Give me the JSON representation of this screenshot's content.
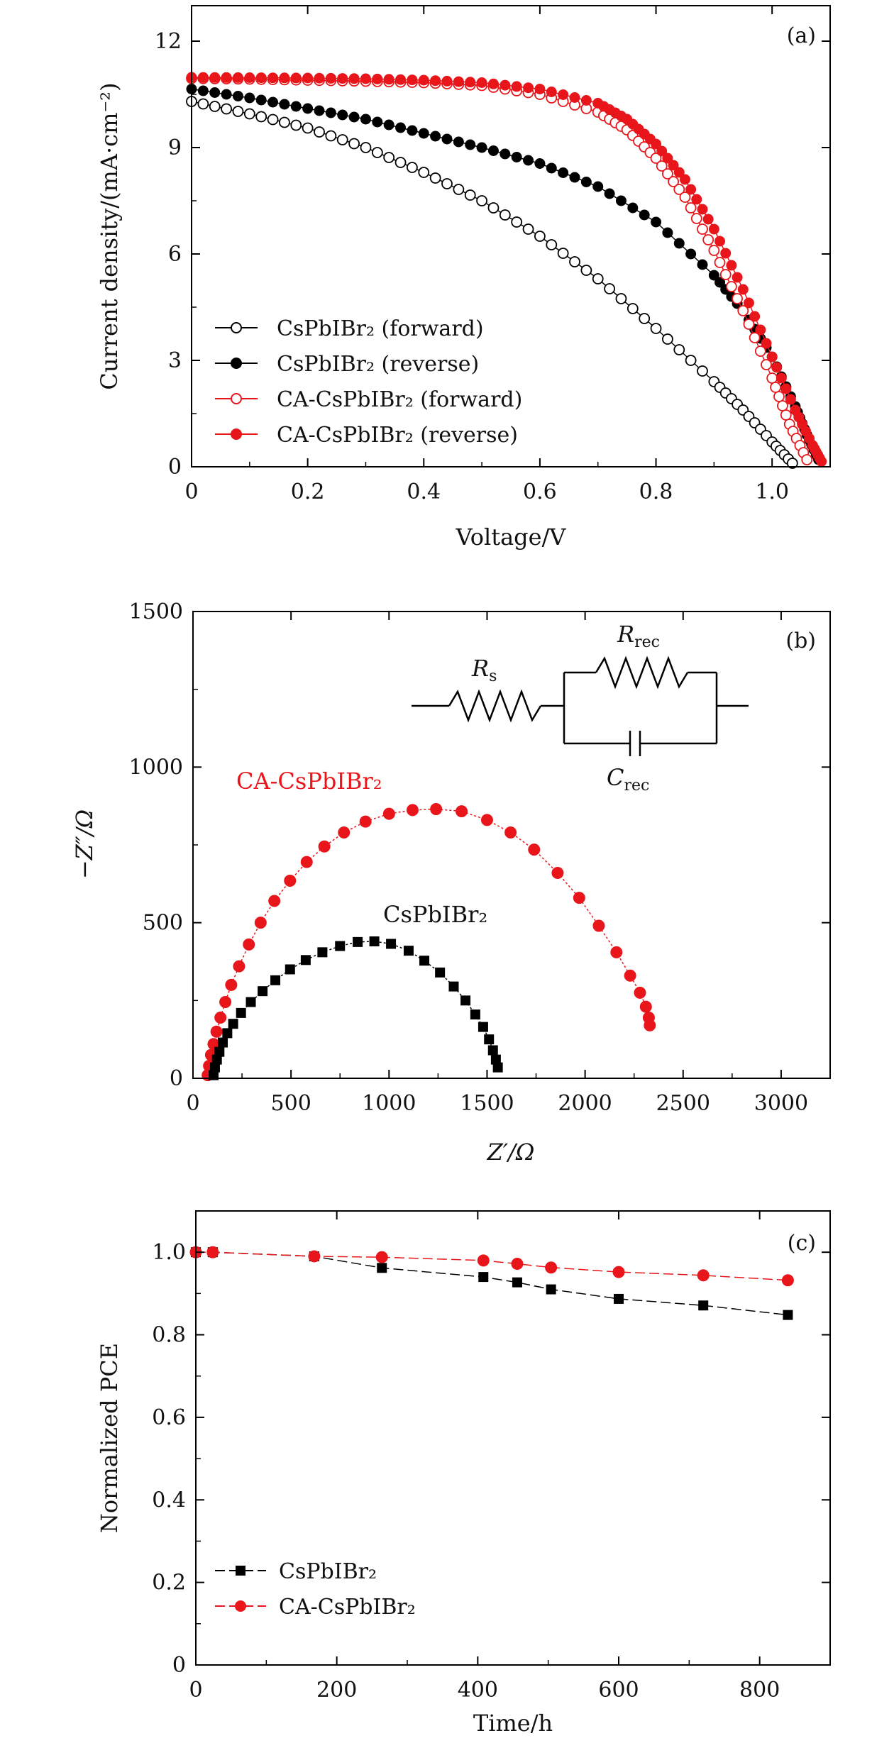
{
  "colors": {
    "black": "#000000",
    "red": "#e8161b",
    "line_red": "#d43a3a"
  },
  "chart_data": [
    {
      "type": "line",
      "panel_label": "(a)",
      "xlabel": "Voltage/V",
      "ylabel": "Current density/(mA·cm⁻²)",
      "xlim": [
        0,
        1.1
      ],
      "ylim": [
        0,
        13
      ],
      "xticks": [
        0,
        0.2,
        0.4,
        0.6,
        0.8,
        1.0
      ],
      "xtick_labels": [
        "0",
        "0.2",
        "0.4",
        "0.6",
        "0.8",
        "1.0"
      ],
      "yticks": [
        0,
        3,
        6,
        9,
        12
      ],
      "ytick_labels": [
        "0",
        "3",
        "6",
        "9",
        "12"
      ],
      "legend_position": "lower-left",
      "series": [
        {
          "name": "CsPbIBr₂ (forward)",
          "color": "#000000",
          "marker": "circle-open",
          "x": [
            0,
            0.1,
            0.2,
            0.3,
            0.4,
            0.5,
            0.6,
            0.7,
            0.8,
            0.9,
            0.95,
            1.0,
            1.035
          ],
          "y": [
            10.3,
            9.95,
            9.55,
            9.0,
            8.3,
            7.5,
            6.5,
            5.3,
            3.9,
            2.4,
            1.6,
            0.7,
            0.1
          ]
        },
        {
          "name": "CsPbIBr₂ (reverse)",
          "color": "#000000",
          "marker": "circle-filled",
          "x": [
            0,
            0.1,
            0.2,
            0.3,
            0.4,
            0.5,
            0.6,
            0.7,
            0.8,
            0.9,
            0.95,
            1.0,
            1.04,
            1.06,
            1.08
          ],
          "y": [
            10.65,
            10.4,
            10.1,
            9.8,
            9.4,
            9.0,
            8.55,
            7.9,
            6.9,
            5.4,
            4.4,
            3.1,
            1.7,
            0.9,
            0.2
          ]
        },
        {
          "name": "CA-CsPbIBr₂ (forward)",
          "color": "#e8161b",
          "marker": "circle-open",
          "x": [
            0,
            0.1,
            0.2,
            0.3,
            0.4,
            0.5,
            0.6,
            0.7,
            0.75,
            0.8,
            0.85,
            0.9,
            0.95,
            1.0,
            1.03,
            1.06
          ],
          "y": [
            10.95,
            10.93,
            10.9,
            10.87,
            10.83,
            10.75,
            10.5,
            10.0,
            9.5,
            8.7,
            7.6,
            6.1,
            4.4,
            2.5,
            1.2,
            0.2
          ]
        },
        {
          "name": "CA-CsPbIBr₂ (reverse)",
          "color": "#e8161b",
          "marker": "circle-filled",
          "x": [
            0,
            0.1,
            0.2,
            0.3,
            0.4,
            0.5,
            0.6,
            0.7,
            0.75,
            0.8,
            0.85,
            0.9,
            0.95,
            1.0,
            1.04,
            1.07,
            1.085
          ],
          "y": [
            10.98,
            10.97,
            10.96,
            10.94,
            10.9,
            10.83,
            10.65,
            10.25,
            9.8,
            9.1,
            8.1,
            6.7,
            5.0,
            3.1,
            1.6,
            0.6,
            0.15
          ]
        }
      ]
    },
    {
      "type": "scatter",
      "panel_label": "(b)",
      "xlabel": "Z′/Ω",
      "ylabel": "−Z″/Ω",
      "xlim": [
        0,
        3250
      ],
      "ylim": [
        0,
        1500
      ],
      "xticks": [
        0,
        500,
        1000,
        1500,
        2000,
        2500,
        3000
      ],
      "xtick_labels": [
        "0",
        "500",
        "1000",
        "1500",
        "2000",
        "2500",
        "3000"
      ],
      "yticks": [
        0,
        500,
        1000,
        1500
      ],
      "ytick_labels": [
        "0",
        "500",
        "1000",
        "1500"
      ],
      "circuit_labels": {
        "rs": "R",
        "rs_sub": "s",
        "rrec": "R",
        "rrec_sub": "rec",
        "crec": "C",
        "crec_sub": "rec"
      },
      "series": [
        {
          "name": "CA-CsPbIBr₂",
          "color": "#e8161b",
          "marker": "circle-filled",
          "x": [
            75,
            82,
            92,
            105,
            120,
            140,
            165,
            195,
            235,
            285,
            345,
            415,
            495,
            580,
            670,
            770,
            880,
            1000,
            1120,
            1240,
            1370,
            1500,
            1620,
            1740,
            1860,
            1970,
            2070,
            2160,
            2230,
            2280,
            2310,
            2325,
            2330
          ],
          "y": [
            10,
            40,
            75,
            110,
            150,
            195,
            245,
            300,
            360,
            430,
            500,
            570,
            635,
            695,
            745,
            790,
            825,
            850,
            862,
            865,
            858,
            830,
            790,
            735,
            660,
            580,
            490,
            405,
            330,
            275,
            230,
            195,
            170
          ]
        },
        {
          "name": "CsPbIBr₂",
          "color": "#000000",
          "marker": "square-filled",
          "x": [
            105,
            112,
            122,
            135,
            152,
            175,
            205,
            245,
            295,
            355,
            420,
            495,
            575,
            660,
            750,
            840,
            925,
            1010,
            1100,
            1180,
            1260,
            1330,
            1390,
            1440,
            1480,
            1510,
            1530,
            1545,
            1555
          ],
          "y": [
            10,
            35,
            60,
            85,
            115,
            145,
            175,
            210,
            245,
            280,
            315,
            350,
            380,
            405,
            425,
            438,
            440,
            432,
            410,
            378,
            340,
            295,
            250,
            205,
            165,
            125,
            90,
            60,
            35
          ]
        }
      ]
    },
    {
      "type": "line",
      "panel_label": "(c)",
      "xlabel": "Time/h",
      "ylabel": "Normalized PCE",
      "xlim": [
        0,
        900
      ],
      "ylim": [
        0,
        1.1
      ],
      "xticks": [
        0,
        200,
        400,
        600,
        800
      ],
      "xtick_labels": [
        "0",
        "200",
        "400",
        "600",
        "800"
      ],
      "yticks": [
        0,
        0.2,
        0.4,
        0.6,
        0.8,
        1.0
      ],
      "ytick_labels": [
        "0",
        "0.2",
        "0.4",
        "0.6",
        "0.8",
        "1.0"
      ],
      "legend_position": "lower-left",
      "series": [
        {
          "name": "CsPbIBr₂",
          "color": "#000000",
          "marker": "square-filled",
          "x": [
            0,
            24,
            168,
            264,
            408,
            456,
            504,
            600,
            720,
            840
          ],
          "y": [
            1.0,
            1.0,
            0.99,
            0.962,
            0.94,
            0.927,
            0.91,
            0.887,
            0.871,
            0.848
          ]
        },
        {
          "name": "CA-CsPbIBr₂",
          "color": "#e8161b",
          "marker": "circle-filled",
          "x": [
            0,
            24,
            168,
            264,
            408,
            456,
            504,
            600,
            720,
            840
          ],
          "y": [
            1.0,
            1.0,
            0.99,
            0.988,
            0.98,
            0.972,
            0.963,
            0.952,
            0.944,
            0.932
          ]
        }
      ]
    }
  ]
}
